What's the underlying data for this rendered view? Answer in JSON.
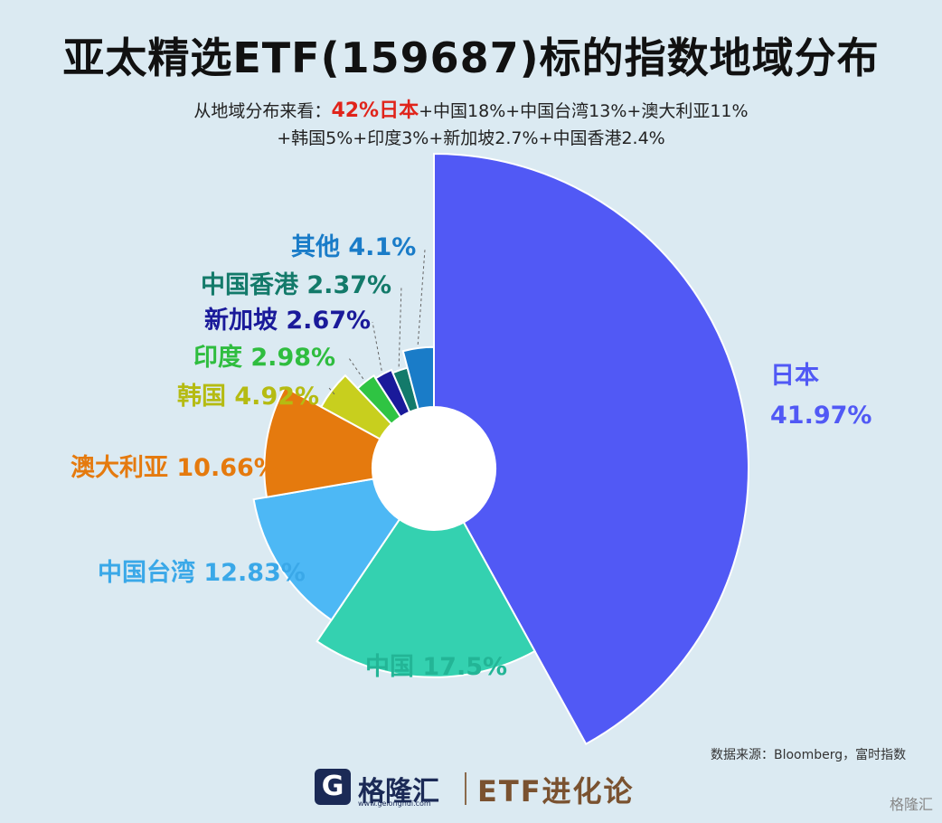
{
  "header": {
    "title": "亚太精选ETF(159687)标的指数地域分布",
    "subtitle_prefix": "从地域分布来看：",
    "subtitle_highlight": "42%日本",
    "subtitle_rest1": "+中国18%+中国台湾13%+澳大利亚11%",
    "subtitle_rest2": "+韩国5%+印度3%+新加坡2.7%+中国香港2.4%"
  },
  "chart_data": {
    "type": "pie",
    "categories": [
      "日本",
      "中国",
      "中国台湾",
      "澳大利亚",
      "韩国",
      "印度",
      "新加坡",
      "中国香港",
      "其他"
    ],
    "values": [
      41.97,
      17.5,
      12.83,
      10.66,
      4.92,
      2.98,
      2.67,
      2.37,
      4.1
    ],
    "labels": [
      "日本 41.97%",
      "中国 17.5%",
      "中国台湾 12.83%",
      "澳大利亚 10.66%",
      "韩国 4.92%",
      "印度 2.98%",
      "新加坡 2.67%",
      "中国香港 2.37%",
      "其他 4.1%"
    ],
    "colors": [
      "#5159f5",
      "#34d1b0",
      "#4db8f5",
      "#e57a0e",
      "#c8cf1e",
      "#2fc443",
      "#1a1a9a",
      "#137a6a",
      "#1a7cc8"
    ],
    "label_colors": [
      "#5159f5",
      "#23b596",
      "#3aa8e8",
      "#e57a0e",
      "#b5bb12",
      "#2fbd3f",
      "#1a1a9a",
      "#137a6a",
      "#1a7cc8"
    ],
    "japan_label_line1": "日本",
    "japan_label_line2": "41.97%"
  },
  "footer": {
    "source": "数据来源：Bloomberg，富时指数",
    "logo_icon": "G",
    "logo_name": "格隆汇",
    "logo_url": "www.gelonghui.com",
    "logo_sub": "ETF进化论",
    "corner": "格隆汇"
  }
}
